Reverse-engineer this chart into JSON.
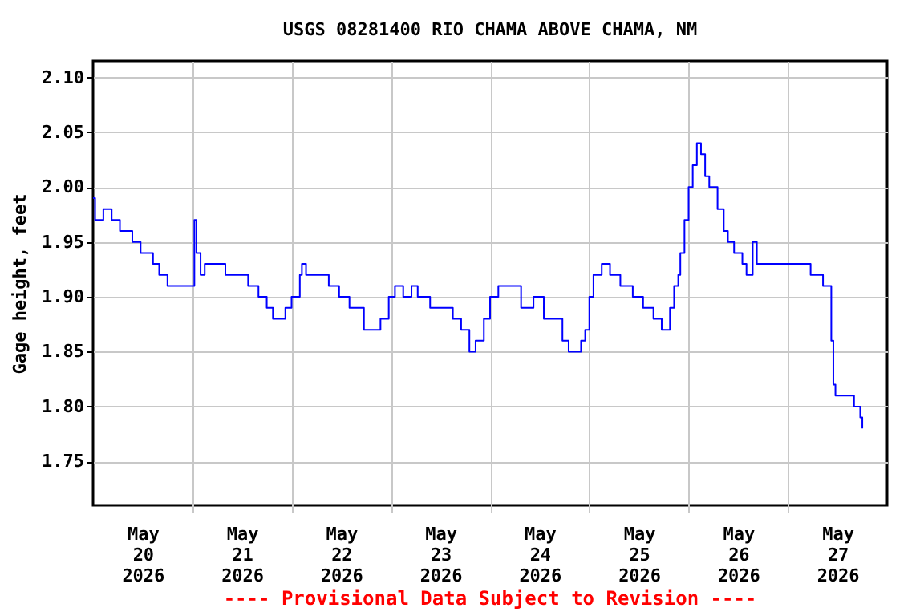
{
  "chart_data": {
    "type": "step",
    "title": "USGS 08281400 RIO CHAMA ABOVE CHAMA, NM",
    "ylabel": "Gage height, feet",
    "annotations": [
      "---- Provisional Data Subject to Revision ----"
    ],
    "grid": true,
    "xlim": [
      "2026-05-20T00:00",
      "2026-05-28T00:00"
    ],
    "xticks": [
      {
        "value": "2026-05-20T12:00",
        "label": "May\n20\n2026"
      },
      {
        "value": "2026-05-21T12:00",
        "label": "May\n21\n2026"
      },
      {
        "value": "2026-05-22T12:00",
        "label": "May\n22\n2026"
      },
      {
        "value": "2026-05-23T12:00",
        "label": "May\n23\n2026"
      },
      {
        "value": "2026-05-24T12:00",
        "label": "May\n24\n2026"
      },
      {
        "value": "2026-05-25T12:00",
        "label": "May\n25\n2026"
      },
      {
        "value": "2026-05-26T12:00",
        "label": "May\n26\n2026"
      },
      {
        "value": "2026-05-27T12:00",
        "label": "May\n27\n2026"
      },
      {
        "value": "2026-05-21T00:00",
        "label": null
      },
      {
        "value": "2026-05-22T00:00",
        "label": null
      },
      {
        "value": "2026-05-23T00:00",
        "label": null
      },
      {
        "value": "2026-05-24T00:00",
        "label": null
      },
      {
        "value": "2026-05-25T00:00",
        "label": null
      },
      {
        "value": "2026-05-26T00:00",
        "label": null
      },
      {
        "value": "2026-05-27T00:00",
        "label": null
      }
    ],
    "ylim": [
      1.71,
      2.115
    ],
    "yticks": [
      {
        "value": 1.75,
        "label": "1.75"
      },
      {
        "value": 1.8,
        "label": "1.80"
      },
      {
        "value": 1.85,
        "label": "1.85"
      },
      {
        "value": 1.9,
        "label": "1.90"
      },
      {
        "value": 1.95,
        "label": "1.95"
      },
      {
        "value": 2.0,
        "label": "2.00"
      },
      {
        "value": 2.05,
        "label": "2.05"
      },
      {
        "value": 2.1,
        "label": "2.10"
      }
    ],
    "x": [
      "2026-05-20T00:00",
      "2026-05-20T00:30",
      "2026-05-20T02:30",
      "2026-05-20T04:30",
      "2026-05-20T06:30",
      "2026-05-20T09:30",
      "2026-05-20T11:30",
      "2026-05-20T14:30",
      "2026-05-20T16:00",
      "2026-05-20T18:00",
      "2026-05-20T22:00",
      "2026-05-21T00:00",
      "2026-05-21T00:30",
      "2026-05-21T01:00",
      "2026-05-21T02:00",
      "2026-05-21T03:00",
      "2026-05-21T06:00",
      "2026-05-21T08:00",
      "2026-05-21T11:00",
      "2026-05-21T13:30",
      "2026-05-21T16:00",
      "2026-05-21T18:00",
      "2026-05-21T19:30",
      "2026-05-21T22:00",
      "2026-05-21T22:30",
      "2026-05-22T00:00",
      "2026-05-22T02:00",
      "2026-05-22T02:30",
      "2026-05-22T03:30",
      "2026-05-22T06:30",
      "2026-05-22T09:00",
      "2026-05-22T11:30",
      "2026-05-22T14:00",
      "2026-05-22T17:30",
      "2026-05-22T21:30",
      "2026-05-22T23:30",
      "2026-05-23T01:00",
      "2026-05-23T03:00",
      "2026-05-23T05:00",
      "2026-05-23T06:30",
      "2026-05-23T09:30",
      "2026-05-23T13:00",
      "2026-05-23T15:00",
      "2026-05-23T17:00",
      "2026-05-23T19:00",
      "2026-05-23T20:30",
      "2026-05-23T22:30",
      "2026-05-24T00:00",
      "2026-05-24T02:00",
      "2026-05-24T06:00",
      "2026-05-24T07:30",
      "2026-05-24T10:30",
      "2026-05-24T13:00",
      "2026-05-24T15:30",
      "2026-05-24T17:30",
      "2026-05-24T19:00",
      "2026-05-24T22:00",
      "2026-05-24T23:00",
      "2026-05-25T00:00",
      "2026-05-25T01:00",
      "2026-05-25T03:00",
      "2026-05-25T05:00",
      "2026-05-25T07:30",
      "2026-05-25T10:30",
      "2026-05-25T13:00",
      "2026-05-25T15:30",
      "2026-05-25T17:30",
      "2026-05-25T19:30",
      "2026-05-25T20:30",
      "2026-05-25T21:30",
      "2026-05-25T22:00",
      "2026-05-25T23:00",
      "2026-05-26T00:00",
      "2026-05-26T01:00",
      "2026-05-26T02:00",
      "2026-05-26T03:00",
      "2026-05-26T04:00",
      "2026-05-26T05:00",
      "2026-05-26T07:00",
      "2026-05-26T08:30",
      "2026-05-26T09:30",
      "2026-05-26T11:00",
      "2026-05-26T13:00",
      "2026-05-26T14:00",
      "2026-05-26T15:30",
      "2026-05-26T16:30",
      "2026-05-27T05:00",
      "2026-05-27T05:30",
      "2026-05-27T07:30",
      "2026-05-27T08:30",
      "2026-05-27T10:00",
      "2026-05-27T10:30",
      "2026-05-27T11:00",
      "2026-05-27T11:30",
      "2026-05-27T14:00",
      "2026-05-27T16:00",
      "2026-05-27T17:30",
      "2026-05-27T18:00"
    ],
    "series": [
      {
        "color": "#0000ff",
        "values": [
          1.99,
          1.97,
          1.98,
          1.97,
          1.96,
          1.95,
          1.94,
          1.93,
          1.92,
          1.91,
          1.91,
          1.91,
          1.97,
          1.94,
          1.92,
          1.93,
          1.93,
          1.92,
          1.92,
          1.91,
          1.9,
          1.89,
          1.88,
          1.88,
          1.89,
          1.9,
          1.92,
          1.93,
          1.92,
          1.92,
          1.91,
          1.9,
          1.89,
          1.87,
          1.88,
          1.9,
          1.91,
          1.9,
          1.91,
          1.9,
          1.89,
          1.89,
          1.88,
          1.87,
          1.85,
          1.86,
          1.88,
          1.9,
          1.91,
          1.91,
          1.89,
          1.9,
          1.88,
          1.88,
          1.86,
          1.85,
          1.86,
          1.87,
          1.9,
          1.92,
          1.93,
          1.92,
          1.91,
          1.9,
          1.89,
          1.88,
          1.87,
          1.89,
          1.91,
          1.92,
          1.94,
          1.97,
          2.0,
          2.02,
          2.04,
          2.03,
          2.01,
          2.0,
          1.98,
          1.96,
          1.95,
          1.94,
          1.93,
          1.92,
          1.95,
          1.93,
          1.93,
          1.92,
          1.92,
          1.91,
          1.91,
          1.86,
          1.82,
          1.81,
          1.81,
          1.8,
          1.79,
          1.78
        ]
      }
    ]
  }
}
